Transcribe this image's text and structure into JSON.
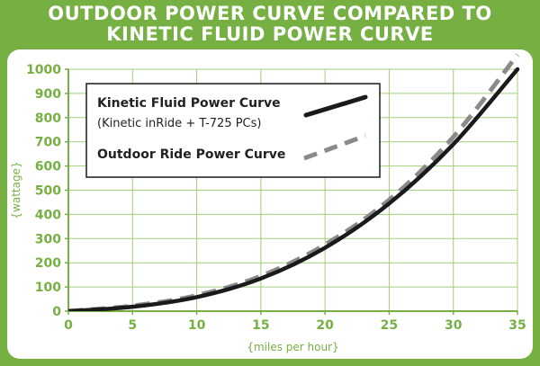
{
  "header": {
    "title_line1": "OUTDOOR POWER CURVE COMPARED TO",
    "title_line2": "KINETIC FLUID POWER CURVE"
  },
  "colors": {
    "brand_green": "#76b043",
    "kinetic_line": "#1a1a1a",
    "outdoor_line": "#8a8a8a",
    "grid": "#9fcf7a"
  },
  "chart_data": {
    "type": "line",
    "title": "OUTDOOR POWER CURVE COMPARED TO KINETIC FLUID POWER CURVE",
    "xlabel": "{miles per hour}",
    "ylabel": "{wattage}",
    "xlim": [
      0,
      35
    ],
    "ylim": [
      0,
      1000
    ],
    "x_ticks": [
      "0",
      "5",
      "10",
      "15",
      "20",
      "25",
      "30",
      "35"
    ],
    "y_ticks": [
      "0",
      "100",
      "200",
      "300",
      "400",
      "500",
      "600",
      "700",
      "800",
      "900",
      "1000"
    ],
    "grid": true,
    "legend_position": "top-left",
    "series": [
      {
        "name": "Kinetic Fluid Power Curve",
        "subtitle": "(Kinetic inRide + T-725 PCs)",
        "style": "solid",
        "x": [
          0,
          5,
          10,
          15,
          20,
          25,
          30,
          35
        ],
        "values": [
          0,
          18,
          58,
          135,
          262,
          445,
          690,
          1000
        ]
      },
      {
        "name": "Outdoor Ride Power Curve",
        "style": "dashed",
        "x": [
          0,
          5,
          10,
          15,
          20,
          25,
          30,
          35
        ],
        "values": [
          0,
          22,
          65,
          145,
          275,
          460,
          720,
          1060
        ]
      }
    ]
  }
}
